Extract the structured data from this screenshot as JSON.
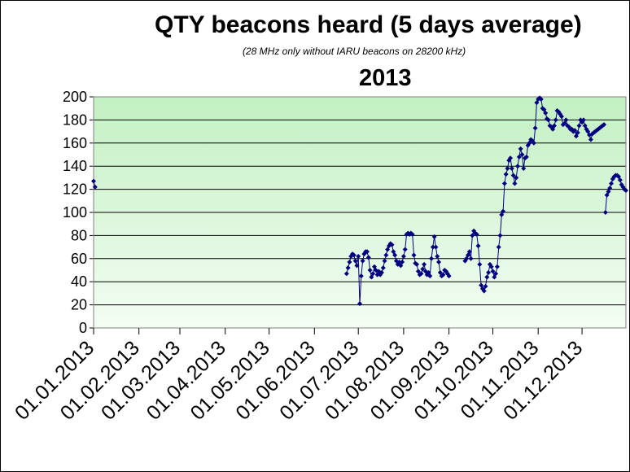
{
  "chart_data": {
    "type": "line",
    "title": "QTY beacons heard (5 days average)",
    "subtitle": "(28 MHz only without IARU beacons on 28200 kHz)",
    "year": "2013",
    "xlabel": "",
    "ylabel": "",
    "ylim": [
      0,
      200
    ],
    "y_ticks": [
      "0",
      "20",
      "40",
      "60",
      "80",
      "100",
      "120",
      "140",
      "160",
      "180",
      "200"
    ],
    "x_tick_labels": [
      "01.01.2013",
      "01.02.2013",
      "01.03.2013",
      "01.04.2013",
      "01.05.2013",
      "01.06.2013",
      "01.07.2013",
      "01.08.2013",
      "01.09.2013",
      "01.10.2013",
      "01.11.2013",
      "01.12.2013"
    ],
    "grid": true,
    "colors": {
      "series": "#000080",
      "plot_top": "#c2f0c2",
      "plot_bottom": "#f4fdf4"
    },
    "series": [
      {
        "segments": [
          {
            "x": [
              1,
              2
            ],
            "y": [
              127,
              122
            ]
          },
          {
            "x": [
              174,
              175,
              176,
              177,
              178,
              179,
              180,
              181,
              182,
              183,
              184,
              185,
              186,
              187,
              188,
              189,
              190,
              191,
              192,
              193,
              194,
              195,
              196,
              197,
              198,
              199,
              200,
              201,
              202,
              203,
              204,
              205,
              206,
              207,
              208,
              209,
              210,
              211,
              212,
              213,
              214,
              215,
              216,
              217,
              218,
              219,
              220,
              221,
              222,
              223,
              224,
              225,
              226,
              227,
              228,
              229,
              230,
              231,
              232,
              233,
              234,
              235,
              236,
              237,
              238,
              239,
              240,
              241,
              242,
              243,
              244
            ],
            "y": [
              47,
              52,
              57,
              62,
              64,
              63,
              58,
              54,
              62,
              21,
              45,
              58,
              64,
              66,
              66,
              61,
              50,
              44,
              47,
              53,
              50,
              46,
              49,
              46,
              48,
              52,
              58,
              63,
              68,
              71,
              73,
              72,
              66,
              63,
              58,
              55,
              57,
              54,
              57,
              62,
              68,
              81,
              82,
              81,
              82,
              81,
              63,
              56,
              55,
              49,
              46,
              47,
              51,
              55,
              49,
              46,
              48,
              45,
              60,
              70,
              79,
              70,
              62,
              57,
              48,
              45,
              46,
              50,
              49,
              47,
              45
            ]
          },
          {
            "x": [
              255,
              256,
              257,
              258,
              259,
              260,
              261,
              262,
              263,
              264,
              265,
              266,
              267,
              268,
              269,
              270,
              271,
              272,
              273,
              274,
              275,
              276,
              277,
              278,
              279,
              280,
              281,
              282,
              283,
              284,
              285,
              286,
              287,
              288,
              289,
              290,
              291,
              292,
              293,
              294,
              295,
              296,
              297,
              298,
              299,
              300,
              301,
              302,
              303,
              304,
              305,
              306,
              307,
              308,
              309,
              310,
              311,
              312,
              313,
              314,
              315,
              316,
              317,
              318,
              319,
              320,
              321,
              322,
              323,
              324,
              325,
              326,
              327,
              328,
              329,
              330,
              331,
              332,
              333,
              334,
              335,
              336,
              337,
              338,
              339,
              340,
              341,
              342,
              343,
              344,
              345,
              346,
              347,
              348,
              349,
              350
            ],
            "y": [
              58,
              60,
              63,
              66,
              60,
              80,
              84,
              82,
              81,
              71,
              55,
              37,
              34,
              32,
              36,
              44,
              48,
              55,
              53,
              49,
              44,
              47,
              53,
              70,
              80,
              98,
              101,
              125,
              133,
              138,
              145,
              147,
              138,
              132,
              125,
              130,
              140,
              148,
              155,
              150,
              138,
              147,
              148,
              158,
              160,
              163,
              162,
              160,
              173,
              195,
              198,
              199,
              198,
              190,
              189,
              186,
              181,
              180,
              175,
              174,
              172,
              175,
              180,
              188,
              187,
              185,
              183,
              176,
              177,
              180,
              175,
              174,
              172,
              172,
              170,
              171,
              166,
              169,
              175,
              180,
              178,
              180,
              175,
              172,
              170,
              167,
              163,
              168,
              169,
              170,
              171,
              172,
              173,
              174,
              175,
              176
            ]
          },
          {
            "x": [
              351,
              352,
              353,
              354,
              355,
              356,
              357,
              358,
              359,
              360,
              361,
              362,
              363,
              364,
              365
            ],
            "y": [
              100,
              115,
              118,
              121,
              125,
              129,
              131,
              132,
              132,
              131,
              128,
              124,
              122,
              120,
              119
            ]
          }
        ]
      }
    ]
  }
}
